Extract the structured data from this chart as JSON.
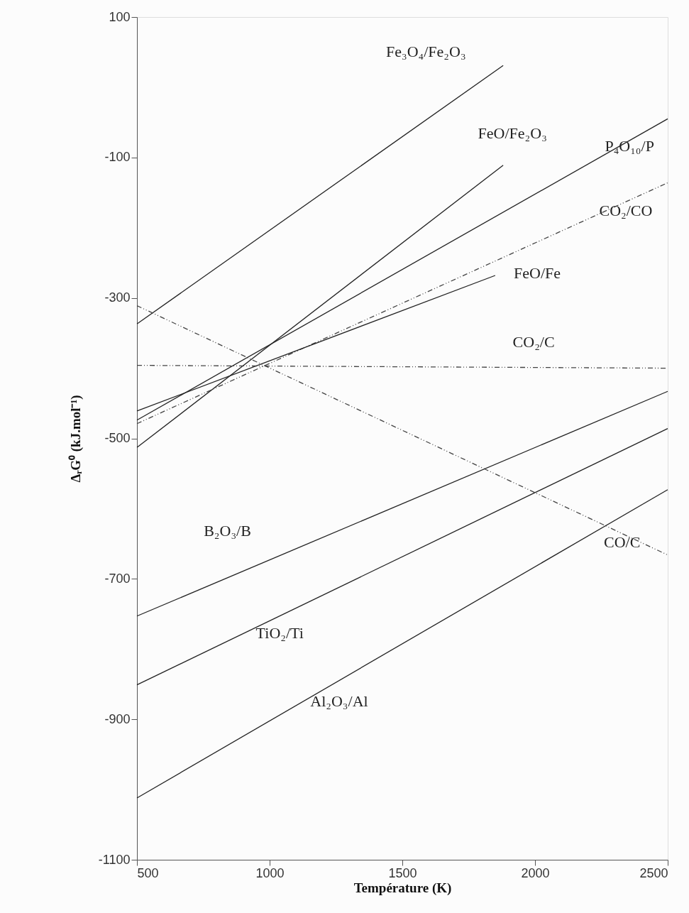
{
  "chart_data": {
    "type": "line",
    "xlabel": "Température (K)",
    "ylabel": "ΔᵣG⁰ (kJ.mol⁻¹)",
    "xlim": [
      500,
      2500
    ],
    "xticks": [
      500,
      1000,
      1500,
      2000,
      2500
    ],
    "ylim": [
      -1100,
      100
    ],
    "yticks": [
      -1100,
      -900,
      -700,
      -500,
      -300,
      -100,
      100
    ],
    "grid": false,
    "marker": "none",
    "series": [
      {
        "name": "Fe₃O₄/Fe₂O₃",
        "color": "#222222",
        "line_style": "solid",
        "x": [
          500,
          1880
        ],
        "values": [
          -337,
          31
        ]
      },
      {
        "name": "FeO/Fe₂O₃",
        "color": "#222222",
        "line_style": "solid",
        "x": [
          500,
          1880
        ],
        "values": [
          -513,
          -111
        ]
      },
      {
        "name": "P₄O₁₀/P",
        "color": "#222222",
        "line_style": "solid",
        "x": [
          500,
          2500
        ],
        "values": [
          -474,
          -45
        ]
      },
      {
        "name": "CO₂/CO",
        "color": "#444444",
        "line_style": "dashed",
        "x": [
          500,
          2500
        ],
        "values": [
          -479,
          -136
        ]
      },
      {
        "name": "FeO/Fe",
        "color": "#222222",
        "line_style": "solid",
        "x": [
          500,
          1850
        ],
        "values": [
          -461,
          -268
        ]
      },
      {
        "name": "CO₂/C",
        "color": "#444444",
        "line_style": "dashed",
        "x": [
          500,
          2500
        ],
        "values": [
          -396,
          -400
        ]
      },
      {
        "name": "CO/C",
        "color": "#444444",
        "line_style": "dashed",
        "x": [
          500,
          2500
        ],
        "values": [
          -311,
          -666
        ]
      },
      {
        "name": "B₂O₃/B",
        "color": "#222222",
        "line_style": "solid",
        "x": [
          500,
          2500
        ],
        "values": [
          -753,
          -433
        ]
      },
      {
        "name": "TiO₂/Ti",
        "color": "#222222",
        "line_style": "solid",
        "x": [
          500,
          2500
        ],
        "values": [
          -851,
          -486
        ]
      },
      {
        "name": "Al₂O₃/Al",
        "color": "#222222",
        "line_style": "solid",
        "x": [
          500,
          2500
        ],
        "values": [
          -1012,
          -573
        ]
      }
    ]
  }
}
